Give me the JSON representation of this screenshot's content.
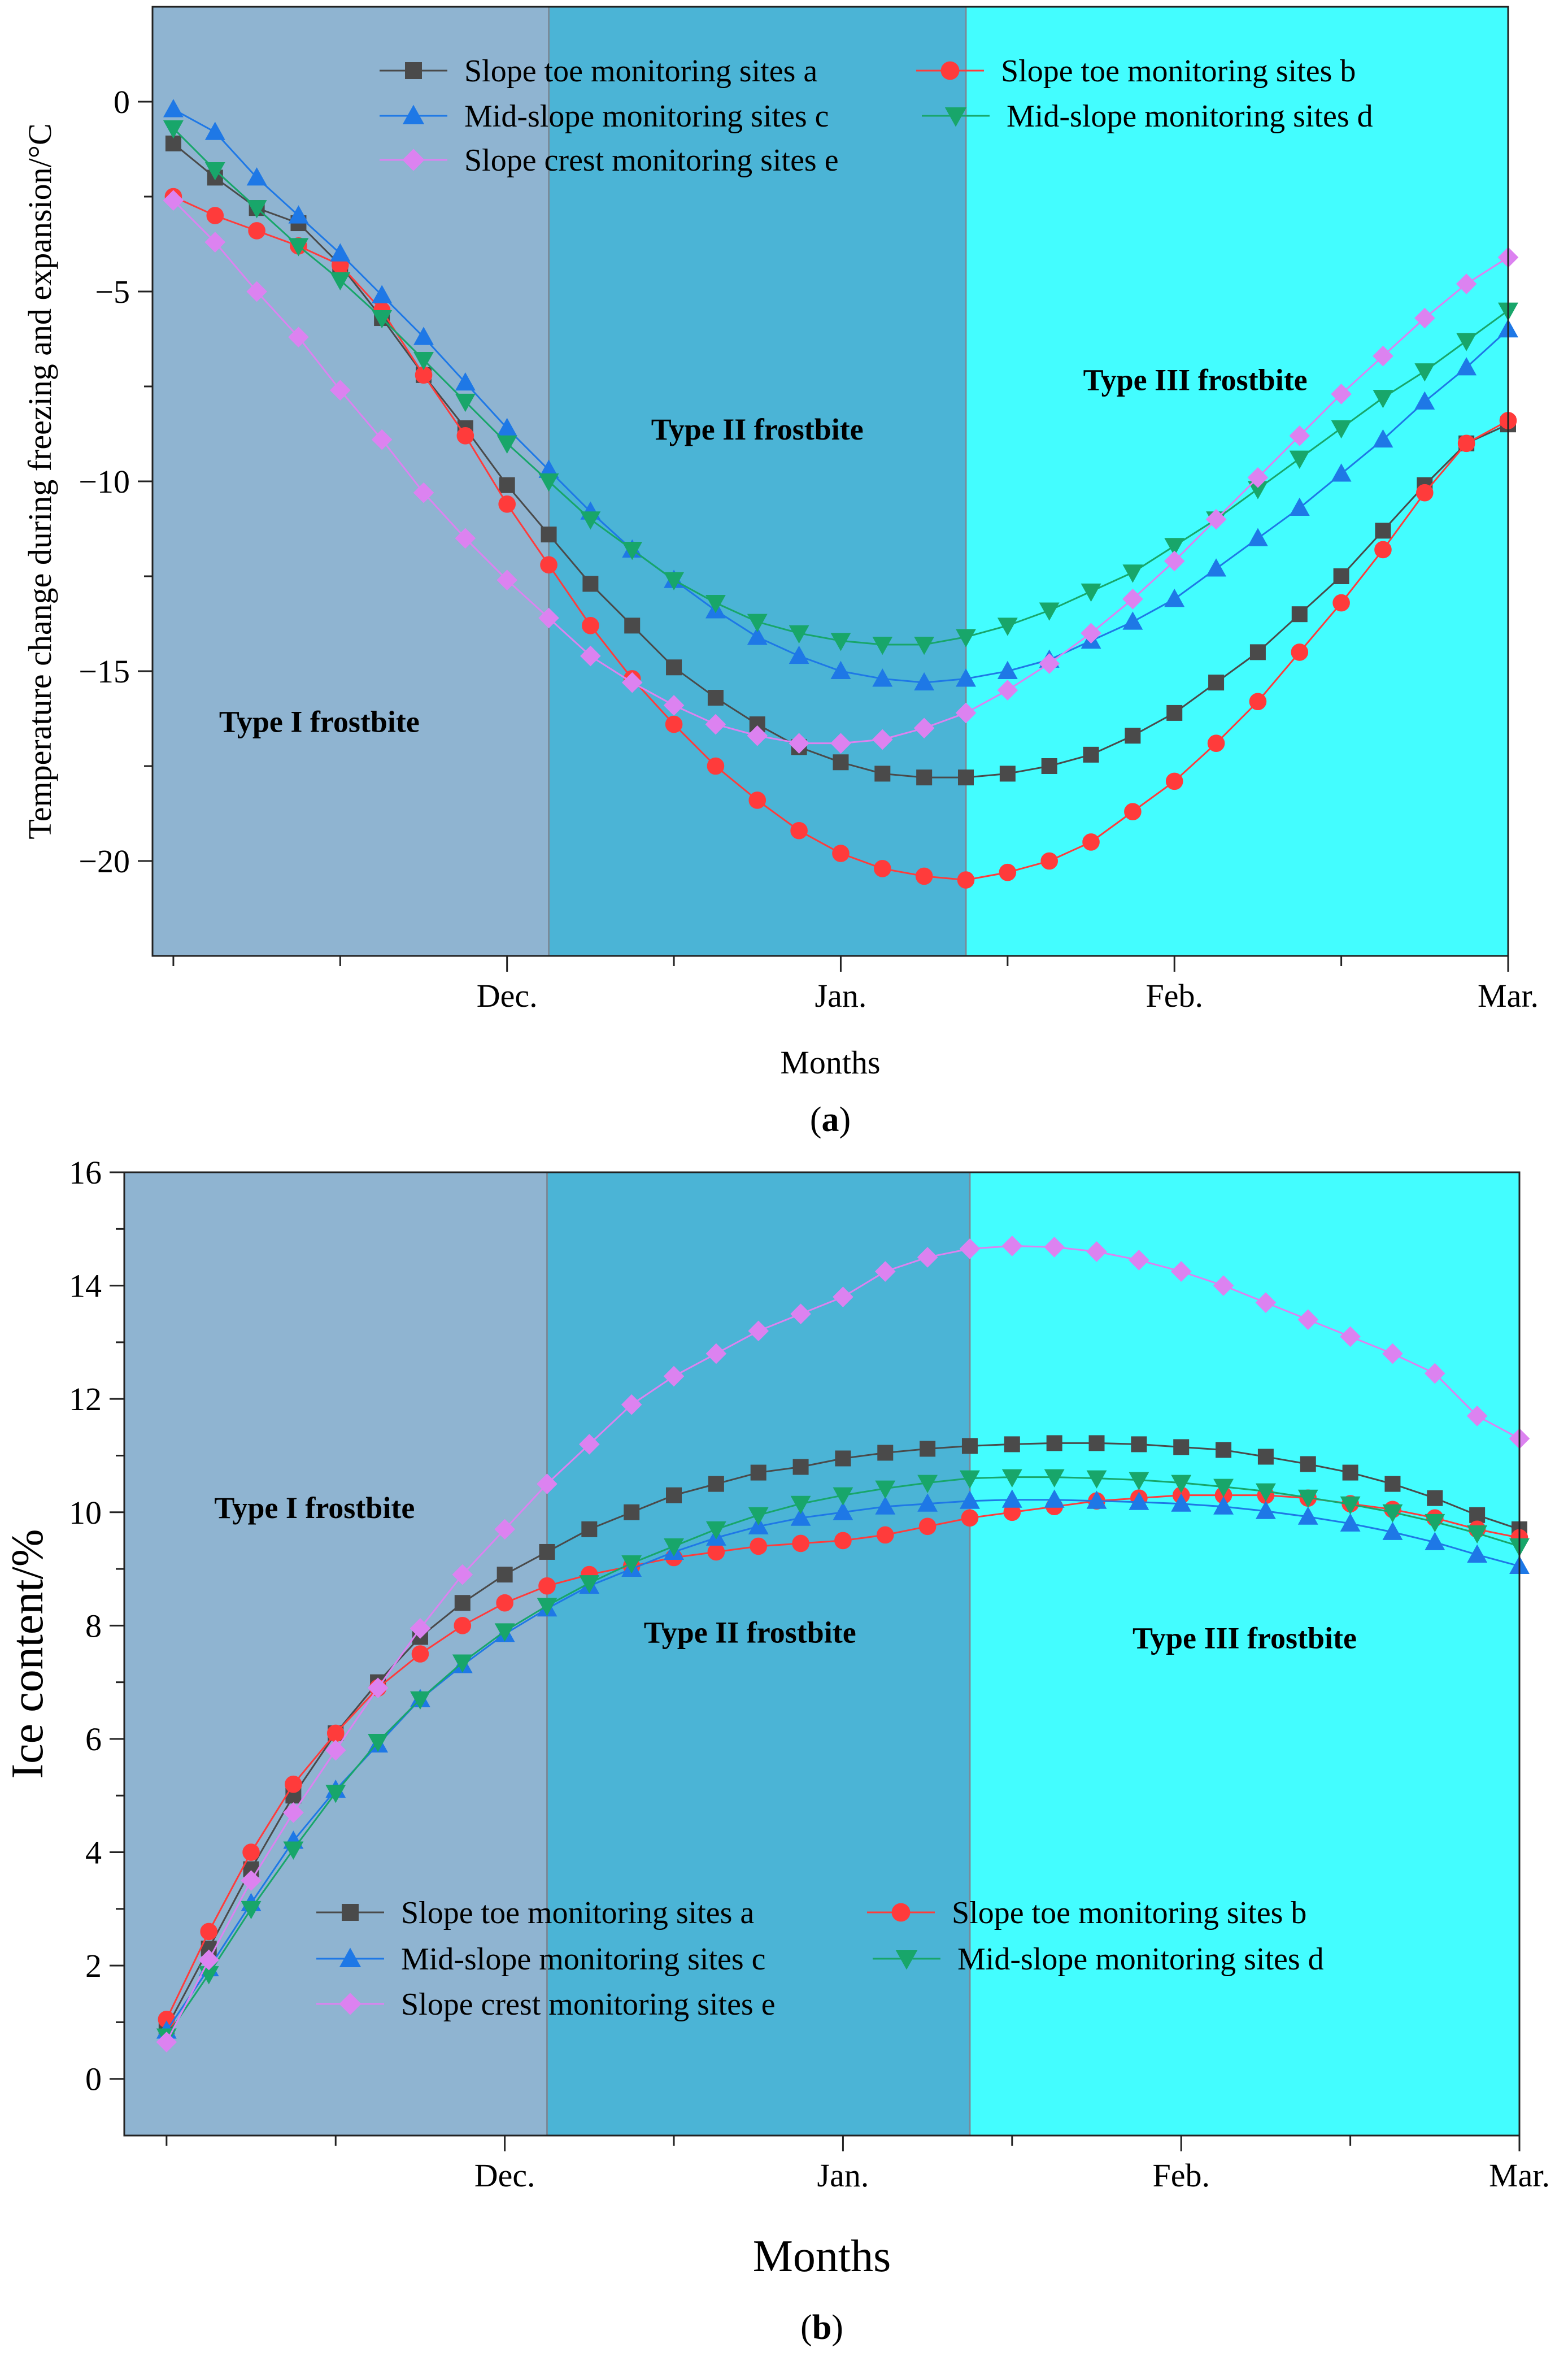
{
  "figure": {
    "caption_prefix": "(",
    "caption_suffix": ")"
  },
  "chart_data": [
    {
      "id": "a",
      "panel_label": "a",
      "type": "line",
      "xlabel": "Months",
      "ylabel": "Temperature change during freezing and expansion/°C",
      "x_ticks": [
        {
          "label": "Dec.",
          "x": 8
        },
        {
          "label": "Jan.",
          "x": 16
        },
        {
          "label": "Feb.",
          "x": 24
        },
        {
          "label": "Mar.",
          "x": 32
        }
      ],
      "xlim": [
        -0.5,
        32
      ],
      "ylim": [
        -22.5,
        2.5
      ],
      "y_ticks": [
        0,
        -5,
        -10,
        -15,
        -20
      ],
      "grid": false,
      "regions": [
        {
          "label": "Type I frostbite",
          "x0": -0.5,
          "x1": 9,
          "color": "#8fb4d1",
          "label_x": 3.5,
          "label_y": -16.6
        },
        {
          "label": "Type II frostbite",
          "x0": 9,
          "x1": 19,
          "color": "#4bb4d6",
          "label_x": 14,
          "label_y": -8.9
        },
        {
          "label": "Type III frostbite",
          "x0": 19,
          "x1": 32,
          "color": "#43fdff",
          "label_x": 24.5,
          "label_y": -7.6
        }
      ],
      "legend_position": "top",
      "x": [
        0,
        1,
        2,
        3,
        4,
        5,
        6,
        7,
        8,
        9,
        10,
        11,
        12,
        13,
        14,
        15,
        16,
        17,
        18,
        19,
        20,
        21,
        22,
        23,
        24,
        25,
        26,
        27,
        28,
        29,
        30,
        31,
        32
      ],
      "series": [
        {
          "name": "Slope toe monitoring sites a",
          "color": "#4a4a4a",
          "marker": "square",
          "values": [
            -1.1,
            -2.0,
            -2.8,
            -3.2,
            -4.3,
            -5.7,
            -7.2,
            -8.6,
            -10.1,
            -11.4,
            -12.7,
            -13.8,
            -14.9,
            -15.7,
            -16.4,
            -17.0,
            -17.4,
            -17.7,
            -17.8,
            -17.8,
            -17.7,
            -17.5,
            -17.2,
            -16.7,
            -16.1,
            -15.3,
            -14.5,
            -13.5,
            -12.5,
            -11.3,
            -10.1,
            -9.0,
            -8.5
          ]
        },
        {
          "name": "Slope toe monitoring sites b",
          "color": "#ff3b3b",
          "marker": "circle",
          "values": [
            -2.5,
            -3.0,
            -3.4,
            -3.8,
            -4.3,
            -5.5,
            -7.2,
            -8.8,
            -10.6,
            -12.2,
            -13.8,
            -15.2,
            -16.4,
            -17.5,
            -18.4,
            -19.2,
            -19.8,
            -20.2,
            -20.4,
            -20.5,
            -20.3,
            -20.0,
            -19.5,
            -18.7,
            -17.9,
            -16.9,
            -15.8,
            -14.5,
            -13.2,
            -11.8,
            -10.3,
            -9.0,
            -8.4
          ]
        },
        {
          "name": "Mid-slope monitoring sites c",
          "color": "#1e78e6",
          "marker": "triangle-up",
          "values": [
            -0.2,
            -0.8,
            -2.0,
            -3.0,
            -4.0,
            -5.1,
            -6.2,
            -7.4,
            -8.6,
            -9.7,
            -10.8,
            -11.8,
            -12.6,
            -13.4,
            -14.1,
            -14.6,
            -15.0,
            -15.2,
            -15.3,
            -15.2,
            -15.0,
            -14.7,
            -14.2,
            -13.7,
            -13.1,
            -12.3,
            -11.5,
            -10.7,
            -9.8,
            -8.9,
            -7.9,
            -7.0,
            -6.0
          ]
        },
        {
          "name": "Mid-slope monitoring sites d",
          "color": "#18a66a",
          "marker": "triangle-down",
          "values": [
            -0.7,
            -1.8,
            -2.8,
            -3.8,
            -4.7,
            -5.7,
            -6.8,
            -7.9,
            -9.0,
            -10.0,
            -11.0,
            -11.8,
            -12.6,
            -13.2,
            -13.7,
            -14.0,
            -14.2,
            -14.3,
            -14.3,
            -14.1,
            -13.8,
            -13.4,
            -12.9,
            -12.4,
            -11.7,
            -11.0,
            -10.2,
            -9.4,
            -8.6,
            -7.8,
            -7.1,
            -6.3,
            -5.5
          ]
        },
        {
          "name": "Slope crest monitoring sites e",
          "color": "#dc82f0",
          "marker": "diamond",
          "values": [
            -2.6,
            -3.7,
            -5.0,
            -6.2,
            -7.6,
            -8.9,
            -10.3,
            -11.5,
            -12.6,
            -13.6,
            -14.6,
            -15.3,
            -15.9,
            -16.4,
            -16.7,
            -16.9,
            -16.9,
            -16.8,
            -16.5,
            -16.1,
            -15.5,
            -14.8,
            -14.0,
            -13.1,
            -12.1,
            -11.0,
            -9.9,
            -8.8,
            -7.7,
            -6.7,
            -5.7,
            -4.8,
            -4.1
          ]
        }
      ]
    },
    {
      "id": "b",
      "panel_label": "b",
      "type": "line",
      "xlabel": "Months",
      "ylabel": "Ice content/%",
      "x_ticks": [
        {
          "label": "Dec.",
          "x": 8
        },
        {
          "label": "Jan.",
          "x": 16
        },
        {
          "label": "Feb.",
          "x": 24
        },
        {
          "label": "Mar.",
          "x": 32
        }
      ],
      "xlim": [
        -1,
        32
      ],
      "ylim": [
        -1,
        16
      ],
      "y_ticks": [
        0,
        2,
        4,
        6,
        8,
        10,
        12,
        14,
        16
      ],
      "grid": false,
      "regions": [
        {
          "label": "Type I frostbite",
          "x0": -1,
          "x1": 9,
          "color": "#8fb4d1",
          "label_x": 3.5,
          "label_y": 9.9
        },
        {
          "label": "Type II frostbite",
          "x0": 9,
          "x1": 19,
          "color": "#4bb4d6",
          "label_x": 13.8,
          "label_y": 7.7
        },
        {
          "label": "Type III frostbite",
          "x0": 19,
          "x1": 32,
          "color": "#43fdff",
          "label_x": 25.5,
          "label_y": 7.6
        }
      ],
      "legend_position": "bottom-left",
      "x": [
        0,
        1,
        2,
        3,
        4,
        5,
        6,
        7,
        8,
        9,
        10,
        11,
        12,
        13,
        14,
        15,
        16,
        17,
        18,
        19,
        20,
        21,
        22,
        23,
        24,
        25,
        26,
        27,
        28,
        29,
        30,
        31,
        32
      ],
      "series": [
        {
          "name": "Slope toe monitoring sites a",
          "color": "#4a4a4a",
          "marker": "square",
          "values": [
            0.9,
            2.3,
            3.7,
            5.0,
            6.1,
            7.0,
            7.8,
            8.4,
            8.9,
            9.3,
            9.7,
            10.0,
            10.3,
            10.5,
            10.7,
            10.8,
            10.95,
            11.05,
            11.12,
            11.17,
            11.2,
            11.22,
            11.22,
            11.2,
            11.15,
            11.1,
            10.98,
            10.85,
            10.7,
            10.5,
            10.25,
            9.95,
            9.7
          ]
        },
        {
          "name": "Slope toe monitoring sites b",
          "color": "#ff3b3b",
          "marker": "circle",
          "values": [
            1.05,
            2.6,
            4.0,
            5.2,
            6.1,
            6.9,
            7.5,
            8.0,
            8.4,
            8.7,
            8.9,
            9.05,
            9.2,
            9.3,
            9.4,
            9.45,
            9.5,
            9.6,
            9.75,
            9.9,
            10.0,
            10.1,
            10.2,
            10.25,
            10.3,
            10.3,
            10.3,
            10.25,
            10.15,
            10.05,
            9.9,
            9.7,
            9.55
          ]
        },
        {
          "name": "Mid-slope monitoring sites c",
          "color": "#1e78e6",
          "marker": "triangle-up",
          "values": [
            0.85,
            1.95,
            3.1,
            4.2,
            5.1,
            5.9,
            6.7,
            7.3,
            7.85,
            8.3,
            8.7,
            9.0,
            9.3,
            9.55,
            9.75,
            9.9,
            10.0,
            10.1,
            10.15,
            10.2,
            10.22,
            10.22,
            10.2,
            10.18,
            10.15,
            10.1,
            10.02,
            9.92,
            9.8,
            9.65,
            9.47,
            9.25,
            9.05
          ]
        },
        {
          "name": "Mid-slope monitoring sites d",
          "color": "#18a66a",
          "marker": "triangle-down",
          "values": [
            0.75,
            1.85,
            3.0,
            4.05,
            5.05,
            5.95,
            6.7,
            7.35,
            7.9,
            8.35,
            8.75,
            9.1,
            9.4,
            9.7,
            9.95,
            10.15,
            10.3,
            10.42,
            10.52,
            10.6,
            10.62,
            10.62,
            10.6,
            10.57,
            10.52,
            10.45,
            10.37,
            10.26,
            10.14,
            10.0,
            9.83,
            9.63,
            9.4
          ]
        },
        {
          "name": "Slope crest monitoring sites e",
          "color": "#dc82f0",
          "marker": "diamond",
          "values": [
            0.65,
            2.1,
            3.5,
            4.7,
            5.8,
            6.9,
            7.95,
            8.9,
            9.7,
            10.5,
            11.2,
            11.9,
            12.4,
            12.8,
            13.2,
            13.5,
            13.8,
            14.25,
            14.5,
            14.65,
            14.7,
            14.68,
            14.6,
            14.45,
            14.25,
            14.0,
            13.7,
            13.4,
            13.1,
            12.8,
            12.45,
            11.7,
            11.3
          ]
        }
      ]
    }
  ]
}
